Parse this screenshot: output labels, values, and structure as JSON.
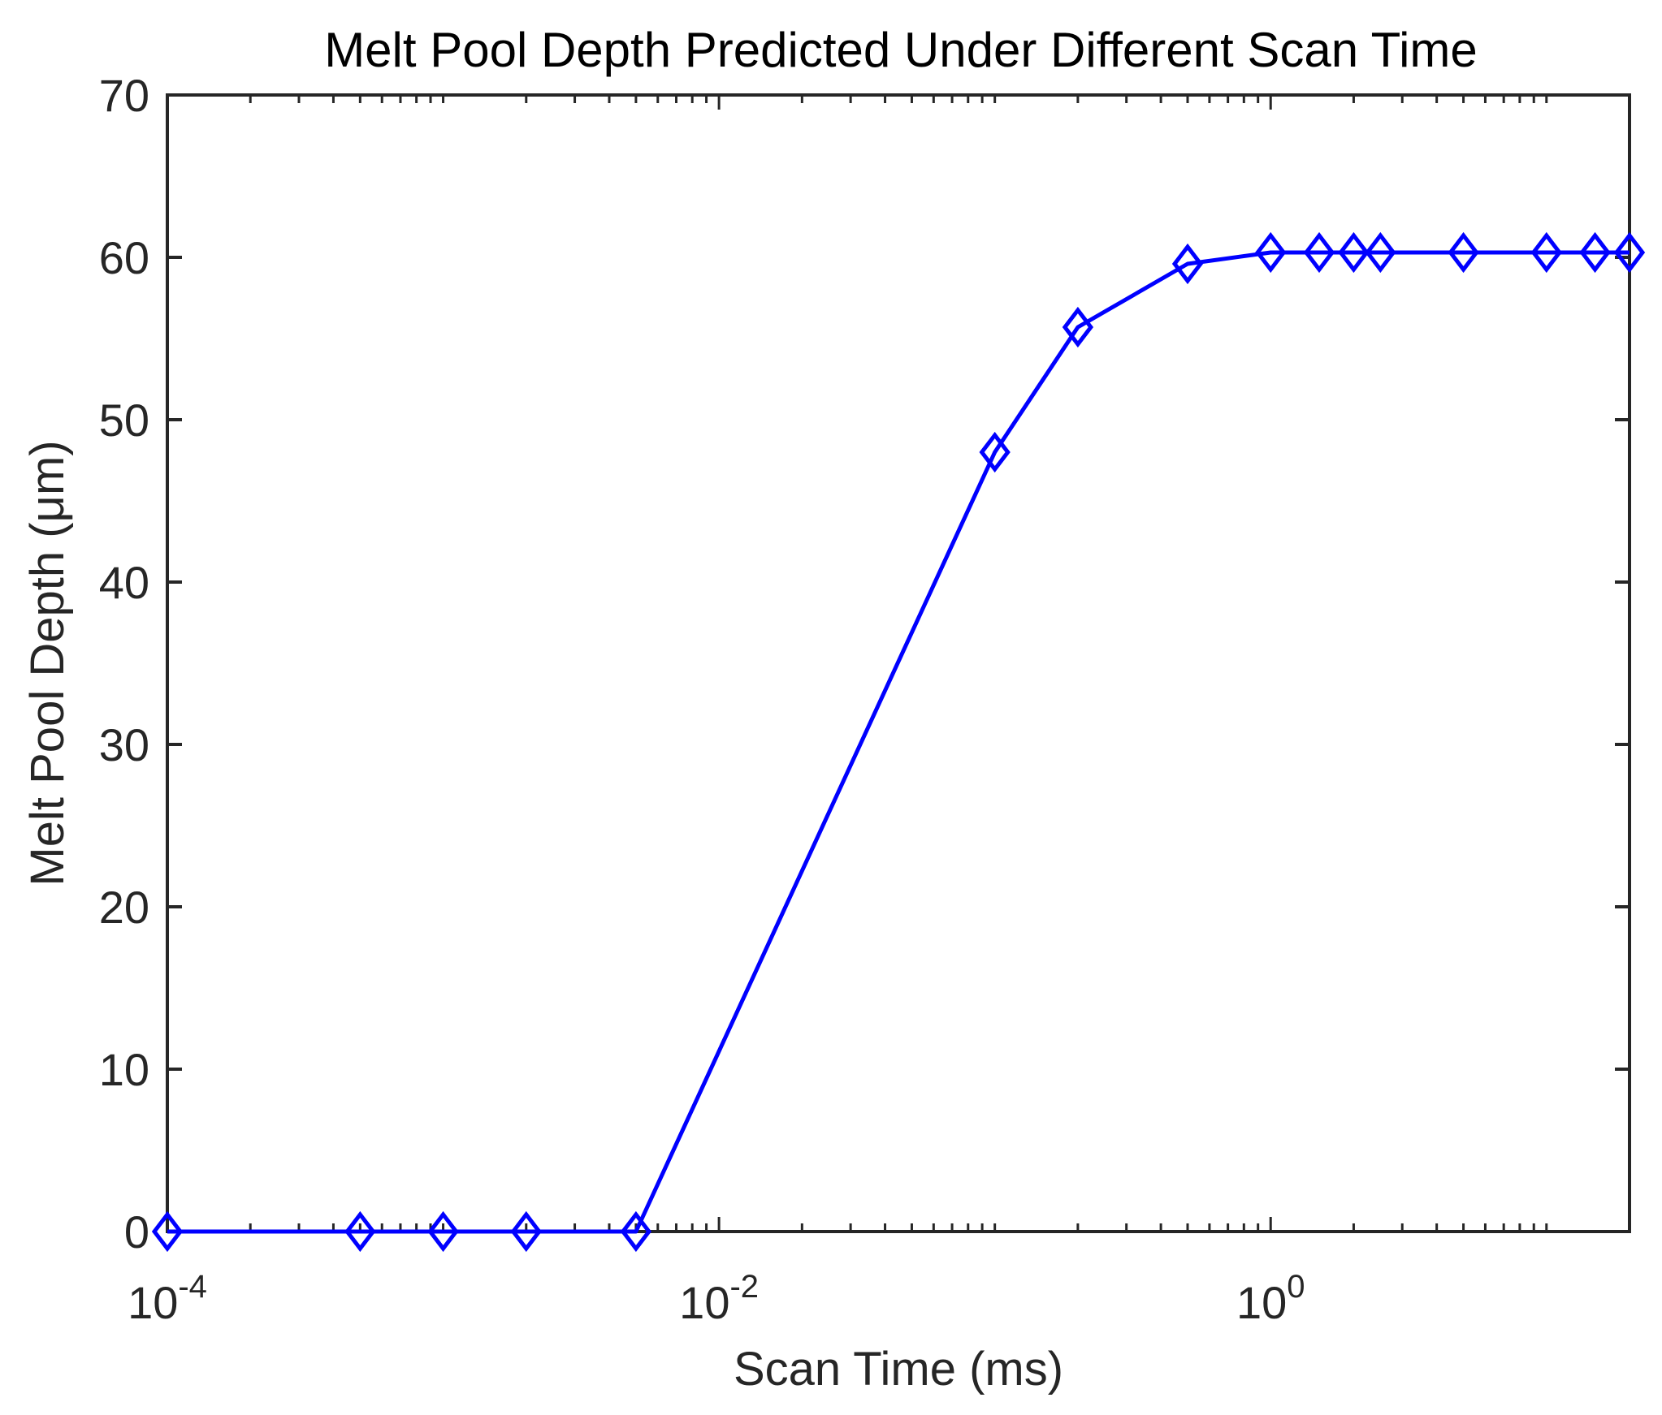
{
  "chart_data": {
    "type": "line",
    "title": "Melt Pool Depth Predicted Under Different Scan Time",
    "xlabel": "Scan Time (ms)",
    "ylabel": "Melt Pool Depth (μm)",
    "xscale": "log",
    "xlim": [
      0.0001,
      20
    ],
    "ylim": [
      0,
      70
    ],
    "yticks": [
      0,
      10,
      20,
      30,
      40,
      50,
      60,
      70
    ],
    "xticks": [
      {
        "value": 0.0001,
        "base": "10",
        "exp": "-4"
      },
      {
        "value": 0.01,
        "base": "10",
        "exp": "-2"
      },
      {
        "value": 1,
        "base": "10",
        "exp": "0"
      }
    ],
    "grid": false,
    "legend": "none",
    "series": [
      {
        "name": "Melt Pool Depth",
        "color": "#0000ff",
        "marker": "diamond",
        "x": [
          0.0001,
          0.0005,
          0.001,
          0.002,
          0.005,
          0.1,
          0.2,
          0.5,
          1,
          1.5,
          2,
          2.5,
          5,
          10,
          15,
          20
        ],
        "y": [
          0,
          0,
          0,
          0,
          0,
          48,
          55.7,
          59.6,
          60.3,
          60.3,
          60.3,
          60.3,
          60.3,
          60.3,
          60.3,
          60.3
        ]
      }
    ]
  }
}
